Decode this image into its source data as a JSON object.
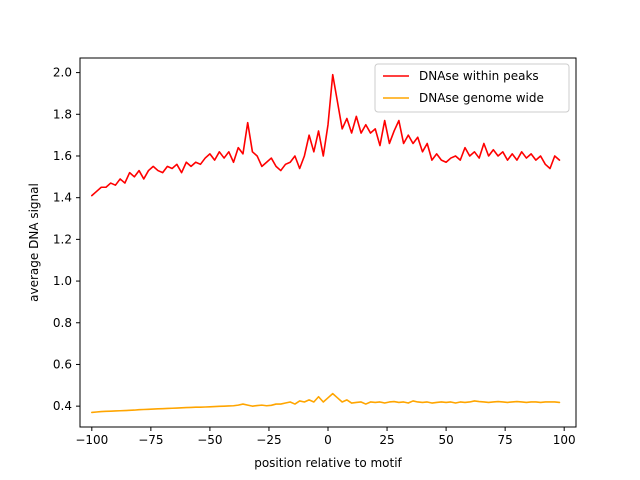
{
  "chart_data": {
    "type": "line",
    "title": "",
    "xlabel": "position relative to motif",
    "ylabel": "average DNA signal",
    "xlim": [
      -105,
      105
    ],
    "ylim": [
      0.3,
      2.07
    ],
    "xticks": [
      -100,
      -75,
      -50,
      -25,
      0,
      25,
      50,
      75,
      100
    ],
    "xtick_labels": [
      "−100",
      "−75",
      "−50",
      "−25",
      "0",
      "25",
      "50",
      "75",
      "100"
    ],
    "yticks": [
      0.4,
      0.6,
      0.8,
      1.0,
      1.2,
      1.4,
      1.6,
      1.8,
      2.0
    ],
    "ytick_labels": [
      "0.4",
      "0.6",
      "0.8",
      "1.0",
      "1.2",
      "1.4",
      "1.6",
      "1.8",
      "2.0"
    ],
    "grid": false,
    "legend_position": "top-right",
    "series": [
      {
        "name": "DNAse within peaks",
        "color": "#ff0000",
        "x": [
          -100,
          -98,
          -96,
          -94,
          -92,
          -90,
          -88,
          -86,
          -84,
          -82,
          -80,
          -78,
          -76,
          -74,
          -72,
          -70,
          -68,
          -66,
          -64,
          -62,
          -60,
          -58,
          -56,
          -54,
          -52,
          -50,
          -48,
          -46,
          -44,
          -42,
          -40,
          -38,
          -36,
          -34,
          -32,
          -30,
          -28,
          -26,
          -24,
          -22,
          -20,
          -18,
          -16,
          -14,
          -12,
          -10,
          -8,
          -6,
          -4,
          -2,
          0,
          2,
          4,
          6,
          8,
          10,
          12,
          14,
          16,
          18,
          20,
          22,
          24,
          26,
          28,
          30,
          32,
          34,
          36,
          38,
          40,
          42,
          44,
          46,
          48,
          50,
          52,
          54,
          56,
          58,
          60,
          62,
          64,
          66,
          68,
          70,
          72,
          74,
          76,
          78,
          80,
          82,
          84,
          86,
          88,
          90,
          92,
          94,
          96,
          98
        ],
        "values": [
          1.41,
          1.43,
          1.45,
          1.45,
          1.47,
          1.46,
          1.49,
          1.47,
          1.52,
          1.5,
          1.53,
          1.49,
          1.53,
          1.55,
          1.53,
          1.52,
          1.55,
          1.54,
          1.56,
          1.52,
          1.57,
          1.55,
          1.57,
          1.56,
          1.59,
          1.61,
          1.58,
          1.62,
          1.59,
          1.62,
          1.57,
          1.64,
          1.61,
          1.76,
          1.62,
          1.6,
          1.55,
          1.57,
          1.59,
          1.55,
          1.53,
          1.56,
          1.57,
          1.6,
          1.54,
          1.6,
          1.7,
          1.62,
          1.72,
          1.6,
          1.75,
          1.99,
          1.86,
          1.73,
          1.78,
          1.71,
          1.79,
          1.71,
          1.75,
          1.71,
          1.73,
          1.65,
          1.77,
          1.66,
          1.72,
          1.77,
          1.66,
          1.7,
          1.66,
          1.69,
          1.62,
          1.66,
          1.58,
          1.61,
          1.58,
          1.57,
          1.59,
          1.6,
          1.58,
          1.64,
          1.6,
          1.62,
          1.59,
          1.66,
          1.6,
          1.63,
          1.6,
          1.62,
          1.58,
          1.61,
          1.58,
          1.62,
          1.59,
          1.61,
          1.58,
          1.6,
          1.56,
          1.54,
          1.6,
          1.58
        ]
      },
      {
        "name": "DNAse genome wide",
        "color": "#ffa500",
        "x": [
          -100,
          -98,
          -96,
          -94,
          -92,
          -90,
          -88,
          -86,
          -84,
          -82,
          -80,
          -78,
          -76,
          -74,
          -72,
          -70,
          -68,
          -66,
          -64,
          -62,
          -60,
          -58,
          -56,
          -54,
          -52,
          -50,
          -48,
          -46,
          -44,
          -42,
          -40,
          -38,
          -36,
          -34,
          -32,
          -30,
          -28,
          -26,
          -24,
          -22,
          -20,
          -18,
          -16,
          -14,
          -12,
          -10,
          -8,
          -6,
          -4,
          -2,
          0,
          2,
          4,
          6,
          8,
          10,
          12,
          14,
          16,
          18,
          20,
          22,
          24,
          26,
          28,
          30,
          32,
          34,
          36,
          38,
          40,
          42,
          44,
          46,
          48,
          50,
          52,
          54,
          56,
          58,
          60,
          62,
          64,
          66,
          68,
          70,
          72,
          74,
          76,
          78,
          80,
          82,
          84,
          86,
          88,
          90,
          92,
          94,
          96,
          98
        ],
        "values": [
          0.37,
          0.372,
          0.374,
          0.375,
          0.376,
          0.377,
          0.378,
          0.379,
          0.38,
          0.381,
          0.383,
          0.384,
          0.385,
          0.386,
          0.387,
          0.388,
          0.389,
          0.39,
          0.391,
          0.392,
          0.393,
          0.394,
          0.395,
          0.395,
          0.396,
          0.397,
          0.398,
          0.399,
          0.4,
          0.401,
          0.402,
          0.405,
          0.41,
          0.405,
          0.4,
          0.403,
          0.405,
          0.402,
          0.404,
          0.41,
          0.41,
          0.415,
          0.42,
          0.41,
          0.425,
          0.42,
          0.43,
          0.42,
          0.445,
          0.42,
          0.44,
          0.46,
          0.44,
          0.42,
          0.43,
          0.415,
          0.418,
          0.42,
          0.41,
          0.42,
          0.418,
          0.42,
          0.415,
          0.42,
          0.422,
          0.418,
          0.42,
          0.415,
          0.425,
          0.42,
          0.418,
          0.42,
          0.415,
          0.418,
          0.42,
          0.418,
          0.42,
          0.415,
          0.42,
          0.418,
          0.42,
          0.425,
          0.422,
          0.42,
          0.418,
          0.42,
          0.422,
          0.42,
          0.418,
          0.42,
          0.422,
          0.42,
          0.418,
          0.42,
          0.42,
          0.418,
          0.42,
          0.42,
          0.42,
          0.418
        ]
      }
    ]
  }
}
